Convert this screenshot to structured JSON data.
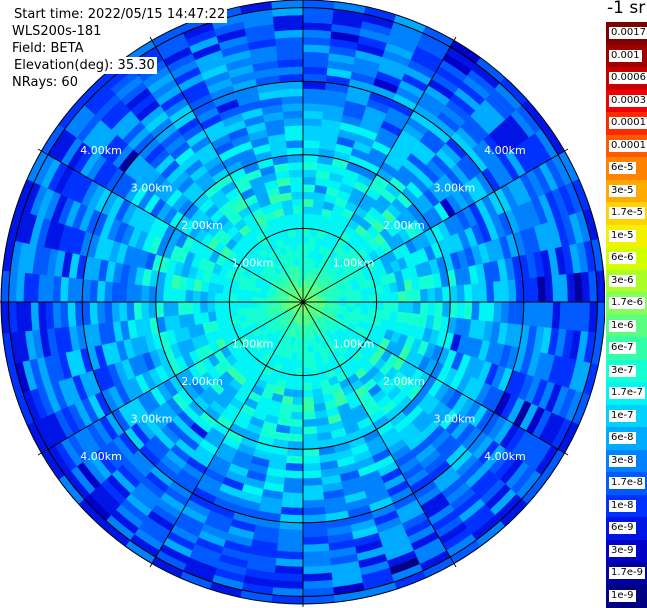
{
  "info": {
    "start_time": "Start time: 2022/05/15 14:47:22",
    "instrument": "WLS200s-181",
    "field": "Field: BETA",
    "elevation": "Elevation(deg): 35.30",
    "nrays": "NRays: 60"
  },
  "units_label": "-1 sr",
  "colorbar": {
    "labels": [
      "0.0017",
      "0.001",
      "0.0006",
      "0.0003",
      "0.00017",
      "0.0001",
      "6e-5",
      "3e-5",
      "1.7e-5",
      "1e-5",
      "6e-6",
      "3e-6",
      "1.7e-6",
      "1e-6",
      "6e-7",
      "3e-7",
      "1.7e-7",
      "1e-7",
      "6e-8",
      "3e-8",
      "1.7e-8",
      "1e-8",
      "6e-9",
      "3e-9",
      "1.7e-9",
      "1e-9"
    ],
    "colors": [
      "#800000",
      "#a00000",
      "#c80000",
      "#f00000",
      "#ff2a00",
      "#ff5a00",
      "#ff8200",
      "#ffaa00",
      "#ffd200",
      "#f5f000",
      "#d2ff00",
      "#aaff28",
      "#82ff5a",
      "#5aff82",
      "#32ffaa",
      "#14ffd2",
      "#00f5f5",
      "#00d2ff",
      "#00aaff",
      "#0082ff",
      "#005aff",
      "#0032ff",
      "#0014e6",
      "#0000c8",
      "#0000a0",
      "#000080"
    ]
  },
  "chart_data": {
    "type": "heatmap",
    "projection": "polar",
    "field": "BETA",
    "nrays": 60,
    "elevation_deg": 35.3,
    "range_rings_km": [
      1.0,
      2.0,
      3.0,
      4.0
    ],
    "ring_labels": [
      "1.00km",
      "2.00km",
      "3.00km",
      "4.00km"
    ],
    "max_range_km": 4.0,
    "azimuth_gridlines_deg": [
      0,
      30,
      60,
      90,
      120,
      150,
      180,
      210,
      240,
      270,
      300,
      330
    ],
    "color_scale": "log",
    "vmin": 1e-09,
    "vmax": 0.0017,
    "radial_profile": [
      {
        "range_km": 0.0,
        "beta": 1.7e-06
      },
      {
        "range_km": 0.5,
        "beta": 3e-07
      },
      {
        "range_km": 1.0,
        "beta": 2e-07
      },
      {
        "range_km": 1.5,
        "beta": 1.5e-07
      },
      {
        "range_km": 2.0,
        "beta": 1e-07
      },
      {
        "range_km": 2.5,
        "beta": 5e-08
      },
      {
        "range_km": 3.0,
        "beta": 3e-08
      },
      {
        "range_km": 3.5,
        "beta": 2e-08
      },
      {
        "range_km": 4.0,
        "beta": 1.5e-08
      }
    ],
    "notes": "approximate azimuthally-averaged values read from the colour scale"
  }
}
